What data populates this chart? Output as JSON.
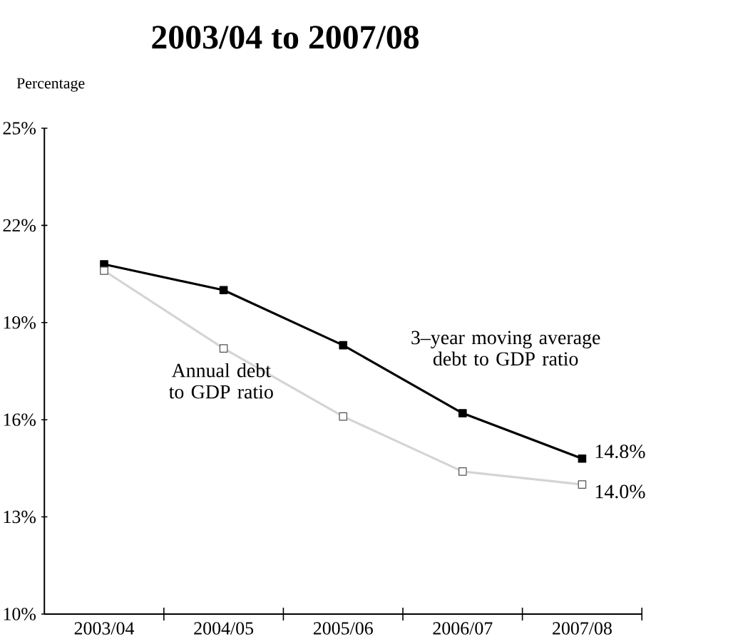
{
  "chart_data": {
    "type": "line",
    "title": "2003/04 to 2007/08",
    "ylabel": "Percentage",
    "categories": [
      "2003/04",
      "2004/05",
      "2005/06",
      "2006/07",
      "2007/08"
    ],
    "series": [
      {
        "name": "3–year moving average debt to GDP ratio",
        "color": "#000000",
        "values": [
          20.8,
          20.0,
          18.3,
          16.2,
          14.8
        ],
        "value_labels": [
          null,
          null,
          null,
          null,
          "14.8%"
        ]
      },
      {
        "name": "Annual debt to GDP ratio",
        "color": "#d4d4d4",
        "values": [
          20.6,
          18.2,
          16.1,
          14.4,
          14.0
        ],
        "value_labels": [
          null,
          null,
          null,
          null,
          "14.0%"
        ]
      }
    ],
    "ylim": [
      10,
      25
    ],
    "yticks": [
      {
        "value": 10,
        "label": "10%"
      },
      {
        "value": 13,
        "label": "13%"
      },
      {
        "value": 16,
        "label": "16%"
      },
      {
        "value": 19,
        "label": "19%"
      },
      {
        "value": 22,
        "label": "22%"
      },
      {
        "value": 25,
        "label": "25%"
      }
    ],
    "marker": "square",
    "grid": false
  }
}
